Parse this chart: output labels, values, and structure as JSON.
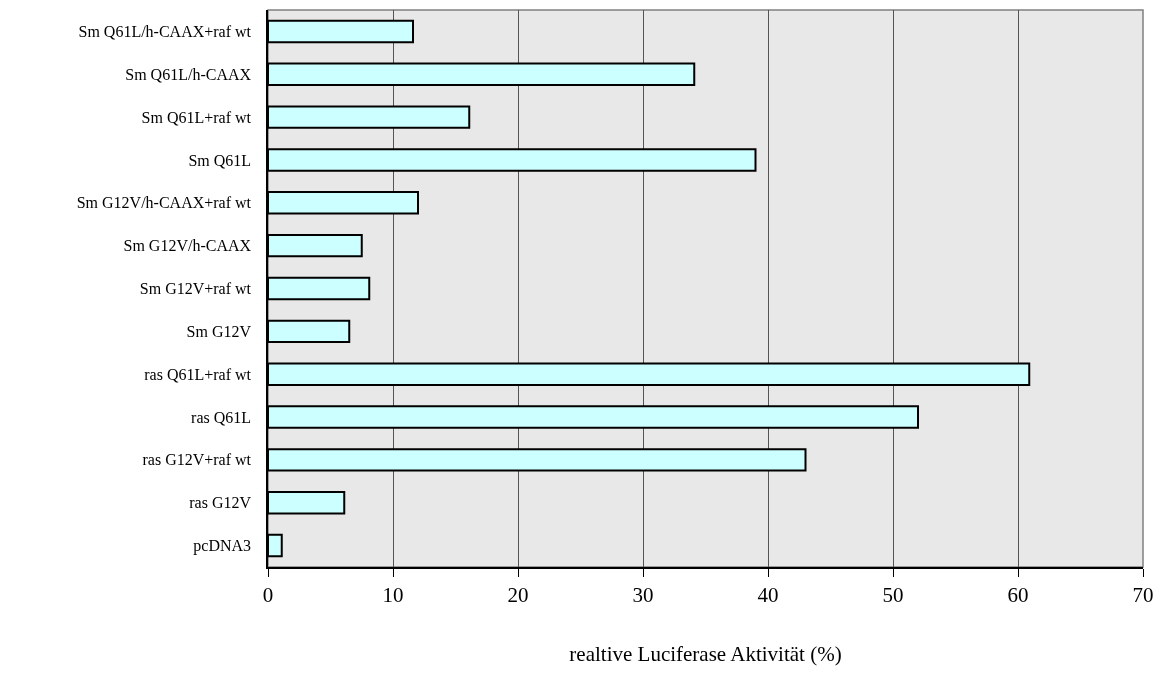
{
  "chart_data": {
    "type": "bar",
    "orientation": "horizontal",
    "xlabel": "realtive Luciferase Aktivität (%)",
    "categories": [
      "Sm Q61L/h-CAAX+raf wt",
      "Sm Q61L/h-CAAX",
      "Sm Q61L+raf wt",
      "Sm Q61L",
      "Sm G12V/h-CAAX+raf wt",
      "Sm G12V/h-CAAX",
      "Sm G12V+raf wt",
      "Sm G12V",
      "ras Q61L+raf wt",
      "ras Q61L",
      "ras G12V+raf wt",
      "ras G12V",
      "pcDNA3"
    ],
    "values": [
      11.6,
      34.1,
      16.1,
      39.0,
      12.0,
      7.5,
      8.1,
      6.5,
      60.9,
      52.0,
      43.0,
      6.1,
      1.1
    ],
    "color": "#ccffff",
    "xlim": [
      0,
      70
    ],
    "xticks": [
      0,
      10,
      20,
      30,
      40,
      50,
      60,
      70
    ],
    "grid": "x"
  }
}
